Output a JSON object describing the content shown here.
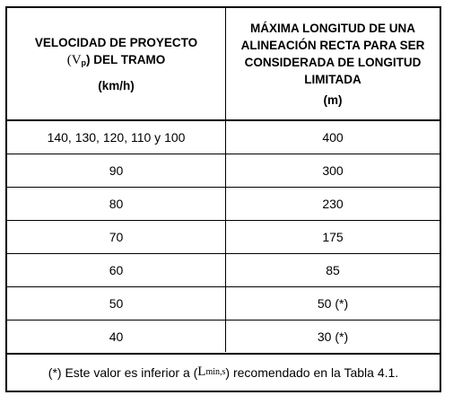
{
  "table": {
    "header_left": {
      "line1": "VELOCIDAD DE PROYECTO",
      "line2_open": "(V",
      "line2_sub": "p",
      "line2_close": ") DEL TRAMO",
      "unit": "(km/h)"
    },
    "header_right": {
      "line1": "MÁXIMA LONGITUD DE UNA",
      "line2": "ALINEACIÓN RECTA PARA SER",
      "line3": "CONSIDERADA DE LONGITUD",
      "line4": "LIMITADA",
      "unit": "(m)"
    },
    "rows": [
      {
        "speed": "140, 130, 120, 110 y 100",
        "length": "400"
      },
      {
        "speed": "90",
        "length": "300"
      },
      {
        "speed": "80",
        "length": "230"
      },
      {
        "speed": "70",
        "length": "175"
      },
      {
        "speed": "60",
        "length": "85"
      },
      {
        "speed": "50",
        "length": "50 (*)"
      },
      {
        "speed": "40",
        "length": "30 (*)"
      }
    ],
    "footnote": {
      "before": "(*) Este valor es inferior a (",
      "symbol": "L",
      "symbol_sub": "min,s",
      "after": ") recomendado en la Tabla 4.1."
    }
  }
}
